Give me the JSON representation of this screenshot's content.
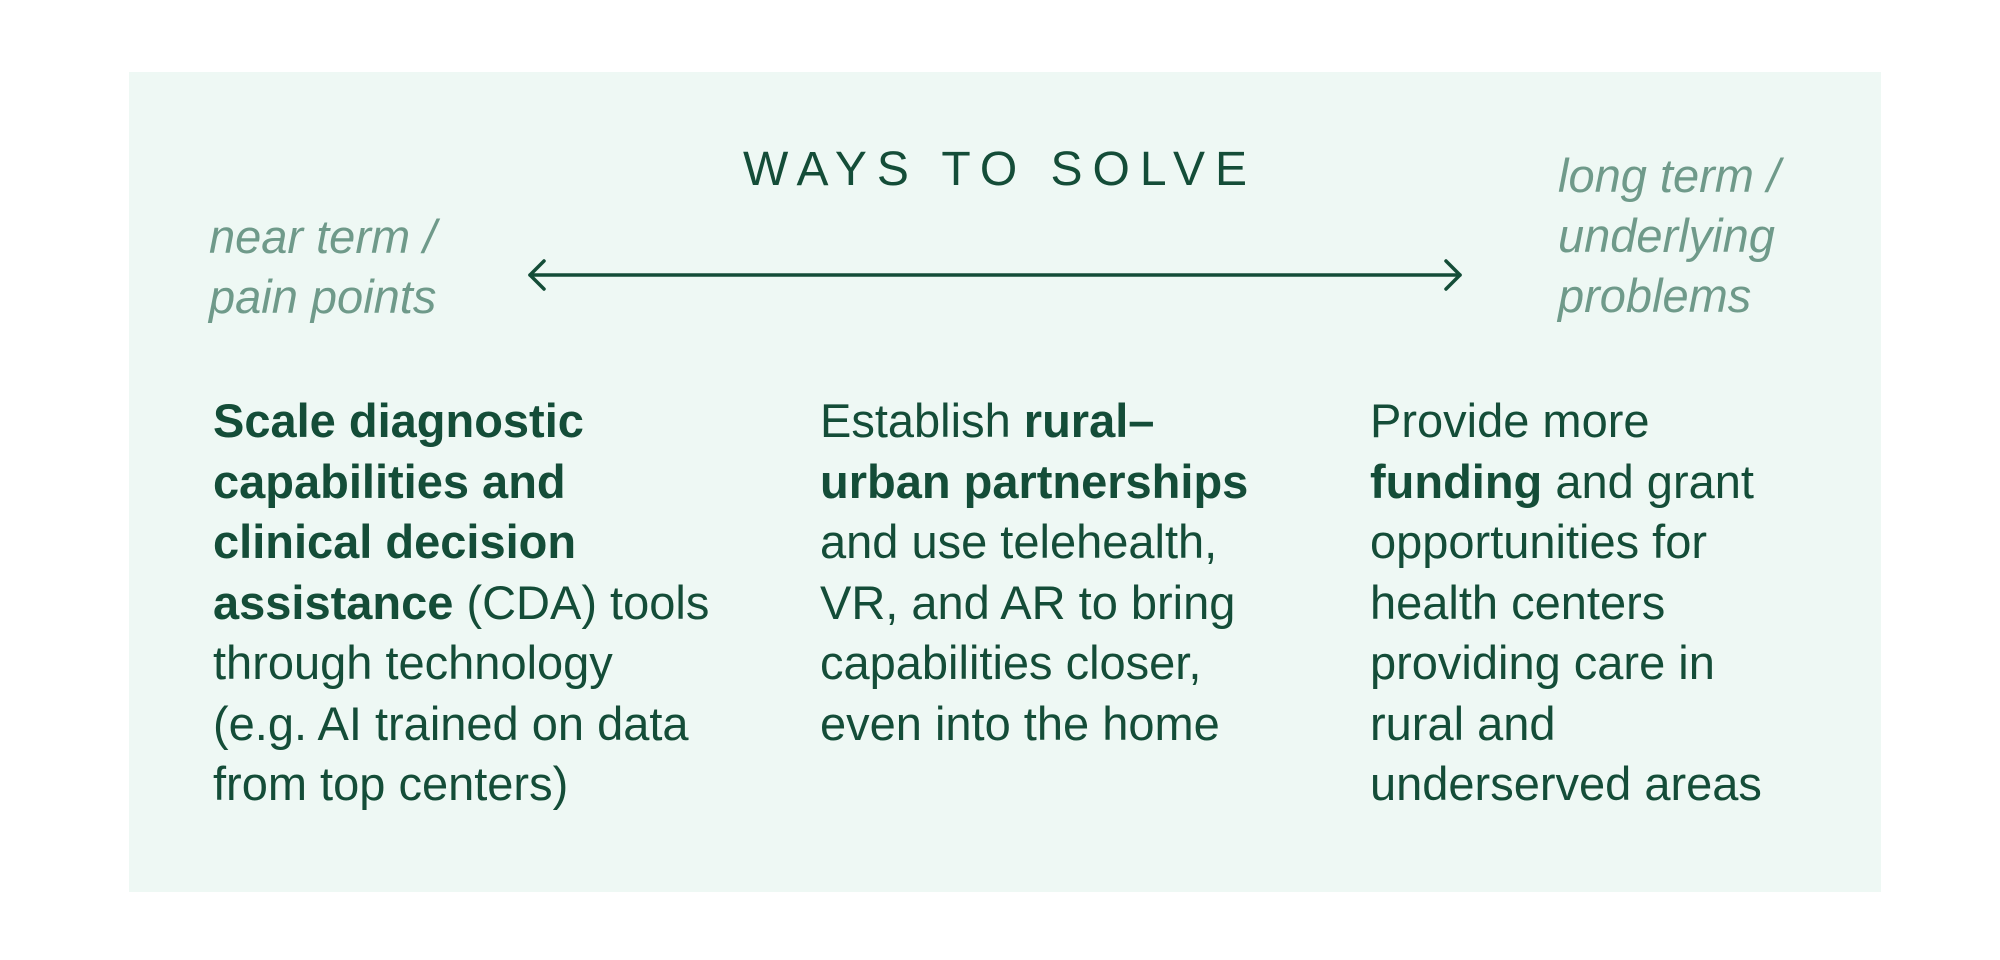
{
  "title": "WAYS TO SOLVE",
  "near_term": {
    "line1": "near term /",
    "line2": "pain points"
  },
  "long_term": {
    "line1": "long term /",
    "line2": "underlying",
    "line3": "problems"
  },
  "columns": [
    {
      "lines": [
        {
          "bold": "Scale diagnostic",
          "normal": ""
        },
        {
          "bold": "capabilities and",
          "normal": ""
        },
        {
          "bold": "clinical decision",
          "normal": ""
        },
        {
          "bold": "assistance",
          "normal": " (CDA) tools"
        },
        {
          "bold": "",
          "normal": "through technology"
        },
        {
          "bold": "",
          "normal": "(e.g. AI trained on data"
        },
        {
          "bold": "",
          "normal": "from top centers)"
        }
      ]
    },
    {
      "lines": [
        {
          "normal_before": "Establish ",
          "bold": "rural–"
        },
        {
          "normal_before": "",
          "bold": "urban partnerships"
        },
        {
          "normal_before": "and use telehealth,",
          "bold": ""
        },
        {
          "normal_before": "VR, and AR to bring",
          "bold": ""
        },
        {
          "normal_before": "capabilities closer,",
          "bold": ""
        },
        {
          "normal_before": "even into the home",
          "bold": ""
        }
      ]
    },
    {
      "lines": [
        {
          "bold": "",
          "normal": "Provide more"
        },
        {
          "bold": "funding",
          "normal": " and grant"
        },
        {
          "bold": "",
          "normal": "opportunities for"
        },
        {
          "bold": "",
          "normal": "health centers"
        },
        {
          "bold": "",
          "normal": "providing care in"
        },
        {
          "bold": "",
          "normal": "rural and"
        },
        {
          "bold": "",
          "normal": "underserved areas"
        }
      ]
    }
  ],
  "colors": {
    "panel_bg": "#eef8f4",
    "primary_text": "#144d38",
    "muted_text": "#6f9a8a",
    "arrow": "#144d38"
  }
}
